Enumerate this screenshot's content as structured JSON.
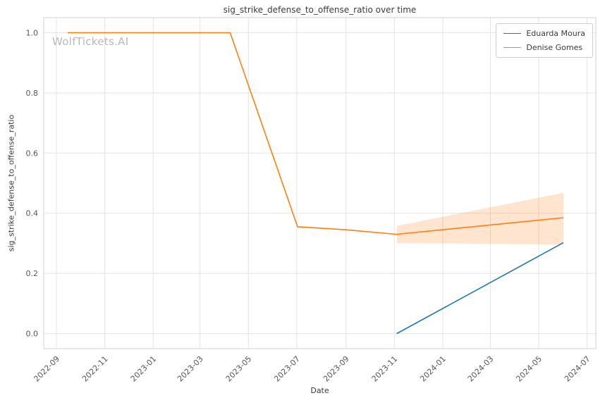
{
  "chart_data": {
    "type": "line",
    "title": "sig_strike_defense_to_offense_ratio over time",
    "xlabel": "Date",
    "ylabel": "sig_strike_defense_to_offense_ratio",
    "watermark": "WolfTickets.AI",
    "grid": true,
    "legend_position": "upper right",
    "x_ticks": [
      "2022-09",
      "2022-11",
      "2023-01",
      "2023-03",
      "2023-05",
      "2023-07",
      "2023-09",
      "2023-11",
      "2024-01",
      "2024-03",
      "2024-05",
      "2024-07"
    ],
    "y_ticks": [
      "0.0",
      "0.2",
      "0.4",
      "0.6",
      "0.8",
      "1.0"
    ],
    "xlim": [
      "2022-08-16",
      "2024-07-12"
    ],
    "ylim": [
      -0.05,
      1.05
    ],
    "series": [
      {
        "name": "Eduarda Moura",
        "color": "#1f77b4",
        "x": [
          "2023-11-04",
          "2024-06-01"
        ],
        "y": [
          0.0,
          0.302
        ]
      },
      {
        "name": "Denise Gomes",
        "color": "#ff7f0e",
        "x": [
          "2022-09-15",
          "2023-04-08",
          "2023-07-02",
          "2023-09-01",
          "2023-11-04",
          "2024-06-01"
        ],
        "y": [
          1.0,
          1.0,
          0.355,
          0.345,
          0.33,
          0.385
        ],
        "band": {
          "x": [
            "2023-11-04",
            "2024-06-01"
          ],
          "lower": [
            0.301,
            0.296
          ],
          "upper": [
            0.358,
            0.468
          ],
          "fill_opacity": 0.2
        }
      }
    ],
    "colors": {
      "grid": "#e3e3e3",
      "spine": "#d0d0d0",
      "tick_label": "#555555",
      "text": "#3a3a3a",
      "watermark": "#b8b8b8",
      "background": "#ffffff"
    }
  }
}
